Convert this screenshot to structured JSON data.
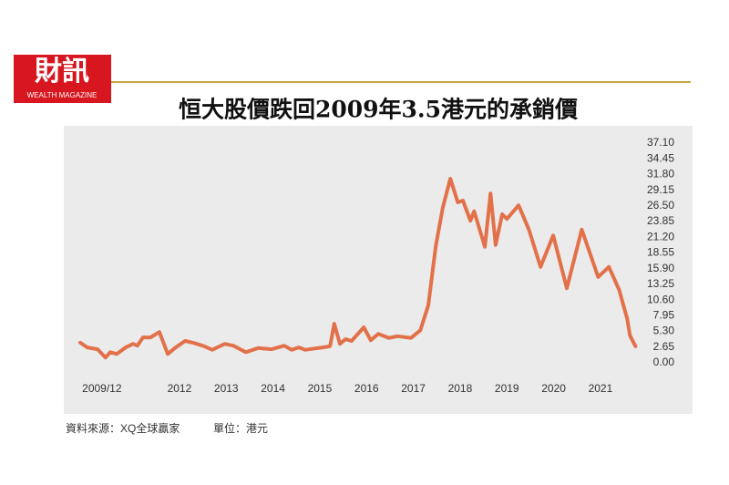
{
  "brand": {
    "name": "財訊",
    "tagline": "WEALTH MAGAZINE"
  },
  "chart_data": {
    "type": "line",
    "title": "恒大股價跌回2009年3.5港元的承銷價",
    "source": "資料來源：XQ全球贏家",
    "unit_note": "單位：港元",
    "x": [
      2009.88,
      2010.03,
      2010.25,
      2010.42,
      2010.52,
      2010.66,
      2010.85,
      2011.01,
      2011.1,
      2011.22,
      2011.38,
      2011.57,
      2011.75,
      2011.9,
      2012.12,
      2012.29,
      2012.53,
      2012.7,
      2012.97,
      2013.15,
      2013.42,
      2013.68,
      2013.97,
      2014.24,
      2014.4,
      2014.55,
      2014.69,
      2015.06,
      2015.22,
      2015.31,
      2015.43,
      2015.55,
      2015.68,
      2015.94,
      2016.09,
      2016.25,
      2016.48,
      2016.66,
      2016.95,
      2017.15,
      2017.32,
      2017.48,
      2017.63,
      2017.79,
      2017.95,
      2018.06,
      2018.22,
      2018.3,
      2018.53,
      2018.65,
      2018.76,
      2018.9,
      2019.0,
      2019.25,
      2019.47,
      2019.72,
      2019.99,
      2020.28,
      2020.6,
      2020.95,
      2021.18,
      2021.4,
      2021.57,
      2021.63,
      2021.75
    ],
    "series": [
      {
        "color": "#e2714a",
        "values": [
          3.4,
          2.6,
          2.3,
          0.9,
          1.8,
          1.5,
          2.6,
          3.2,
          2.9,
          4.3,
          4.3,
          5.2,
          1.5,
          2.5,
          3.7,
          3.4,
          2.8,
          2.2,
          3.2,
          2.9,
          1.8,
          2.5,
          2.3,
          2.9,
          2.2,
          2.6,
          2.2,
          2.6,
          2.8,
          6.6,
          3.2,
          4.0,
          3.7,
          6.0,
          3.8,
          4.9,
          4.2,
          4.5,
          4.2,
          5.5,
          9.7,
          19.7,
          26.2,
          31.1,
          27.1,
          27.4,
          24.0,
          25.6,
          19.6,
          28.6,
          19.9,
          25.1,
          24.3,
          26.6,
          22.5,
          16.2,
          21.5,
          12.6,
          22.5,
          14.5,
          16.2,
          12.3,
          7.5,
          4.6,
          2.8
        ]
      }
    ],
    "xlim": [
      2009.8,
      2021.8
    ],
    "xticks": [
      {
        "value": 2009.92,
        "label": "2009/12"
      },
      2012,
      2013,
      2014,
      2015,
      2016,
      2017,
      2018,
      2019,
      2020,
      2021
    ],
    "ylim": [
      0,
      37.1
    ],
    "yticks": [
      {
        "value": 0,
        "label": "0.00"
      },
      2.65,
      {
        "value": 5.3,
        "label": "5.30"
      },
      7.95,
      {
        "value": 10.6,
        "label": "10.60"
      },
      13.25,
      {
        "value": 15.9,
        "label": "15.90"
      },
      18.55,
      {
        "value": 21.2,
        "label": "21.20"
      },
      23.85,
      {
        "value": 26.5,
        "label": "26.50"
      },
      29.15,
      {
        "value": 31.8,
        "label": "31.80"
      },
      34.45,
      {
        "value": 37.1,
        "label": "37.10"
      }
    ],
    "grid": false
  }
}
